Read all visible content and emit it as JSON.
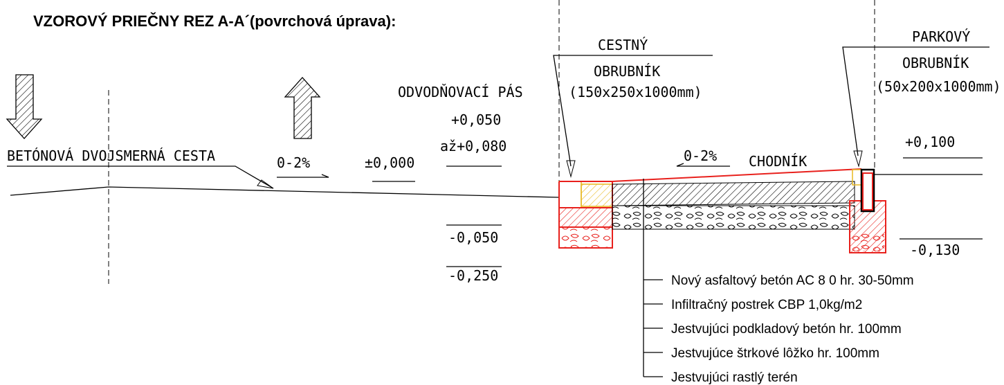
{
  "title": "VZOROVÝ PRIEČNY REZ  A-A´(povrchová úprava):",
  "road": {
    "label": "BETÓNOVÁ DVOJSMERNÁ CESTA",
    "slope": "0-2%",
    "level": "±0,000"
  },
  "drain_strip": {
    "label": "ODVODŇOVACÍ PÁS",
    "level_top_1": "+0,050",
    "level_top_2": "až+0,080",
    "level_bottom_1": "-0,050",
    "level_bottom_2": "-0,250"
  },
  "road_curb": {
    "line_1": "CESTNÝ",
    "line_2": "OBRUBNÍK",
    "size": "(150x250x1000mm)"
  },
  "sidewalk": {
    "label": "CHODNÍK",
    "slope": "0-2%"
  },
  "park_curb": {
    "line_1": "PARKOVÝ",
    "line_2": "OBRUBNÍK",
    "size": "(50x200x1000mm)",
    "level_top": "+0,100",
    "level_bottom": "-0,130"
  },
  "layers": [
    "Nový asfaltový betón AC 8 0 hr. 30-50mm",
    "Infiltračný postrek CBP 1,0kg/m2",
    "Jestvujúci podkladový betón hr. 100mm",
    "Jestvujúce štrkové lôžko hr. 100mm",
    "Jestvujúci rastlý terén"
  ]
}
